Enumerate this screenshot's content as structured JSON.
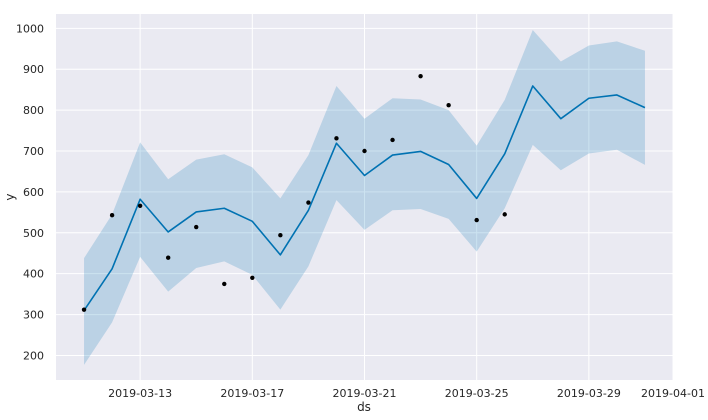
{
  "chart_data": {
    "type": "line",
    "xlabel": "ds",
    "ylabel": "y",
    "xlim": [
      "2019-03-10",
      "2019-04-01"
    ],
    "ylim": [
      140,
      1035
    ],
    "x_ticks": [
      "2019-03-13",
      "2019-03-17",
      "2019-03-21",
      "2019-03-25",
      "2019-03-29",
      "2019-04-01"
    ],
    "y_ticks": [
      200,
      300,
      400,
      500,
      600,
      700,
      800,
      900,
      1000
    ],
    "grid": true,
    "colors": {
      "background": "#eaeaf2",
      "grid": "#ffffff",
      "line": "#0072b2",
      "band": "#0072b2",
      "points": "#000000"
    },
    "series": [
      {
        "type": "line",
        "x": [
          "2019-03-11",
          "2019-03-12",
          "2019-03-13",
          "2019-03-14",
          "2019-03-15",
          "2019-03-16",
          "2019-03-17",
          "2019-03-18",
          "2019-03-19",
          "2019-03-20",
          "2019-03-21",
          "2019-03-22",
          "2019-03-23",
          "2019-03-24",
          "2019-03-25",
          "2019-03-26",
          "2019-03-27",
          "2019-03-28",
          "2019-03-29",
          "2019-03-30",
          "2019-03-31"
        ],
        "values": [
          310,
          412,
          582,
          502,
          551,
          560,
          528,
          446,
          555,
          719,
          640,
          690,
          699,
          667,
          584,
          693,
          859,
          779,
          829,
          837,
          806
        ]
      },
      {
        "type": "band",
        "x": [
          "2019-03-11",
          "2019-03-12",
          "2019-03-13",
          "2019-03-14",
          "2019-03-15",
          "2019-03-16",
          "2019-03-17",
          "2019-03-18",
          "2019-03-19",
          "2019-03-20",
          "2019-03-21",
          "2019-03-22",
          "2019-03-23",
          "2019-03-24",
          "2019-03-25",
          "2019-03-26",
          "2019-03-27",
          "2019-03-28",
          "2019-03-29",
          "2019-03-30",
          "2019-03-31"
        ],
        "lower": [
          177,
          281,
          441,
          356,
          414,
          430,
          397,
          312,
          418,
          580,
          507,
          555,
          558,
          534,
          454,
          560,
          715,
          653,
          694,
          703,
          666
        ],
        "upper": [
          438,
          545,
          721,
          631,
          679,
          692,
          660,
          584,
          690,
          859,
          779,
          829,
          826,
          800,
          713,
          825,
          996,
          919,
          958,
          968,
          945
        ]
      },
      {
        "type": "scatter",
        "x": [
          "2019-03-11",
          "2019-03-12",
          "2019-03-13",
          "2019-03-14",
          "2019-03-15",
          "2019-03-16",
          "2019-03-17",
          "2019-03-18",
          "2019-03-19",
          "2019-03-20",
          "2019-03-21",
          "2019-03-22",
          "2019-03-23",
          "2019-03-24",
          "2019-03-25",
          "2019-03-26"
        ],
        "values": [
          312,
          543,
          566,
          439,
          514,
          375,
          390,
          494,
          574,
          731,
          700,
          727,
          883,
          812,
          531,
          545
        ]
      }
    ]
  }
}
